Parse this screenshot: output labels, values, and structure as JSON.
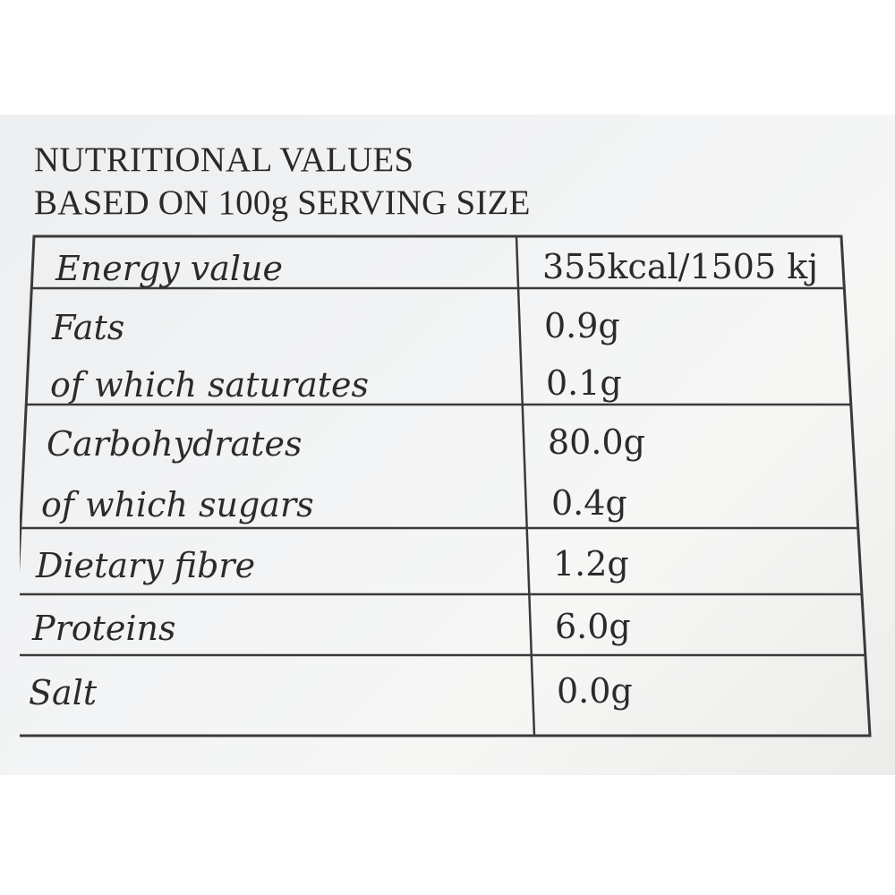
{
  "heading": {
    "line1": "NUTRITIONAL VALUES",
    "line2": "BASED ON 100g SERVING SIZE"
  },
  "rows": [
    {
      "label": "Energy value",
      "value": "355kcal/1505 kj"
    },
    {
      "label": "Fats",
      "value": "0.9g"
    },
    {
      "label": "of which saturates",
      "value": "0.1g"
    },
    {
      "label": "Carbohydrates",
      "value": "80.0g"
    },
    {
      "label": "of which sugars",
      "value": "0.4g"
    },
    {
      "label": "Dietary fibre",
      "value": "1.2g"
    },
    {
      "label": "Proteins",
      "value": "6.0g"
    },
    {
      "label": "Salt",
      "value": "0.0g"
    }
  ],
  "colors": {
    "text": "#2b2b2b",
    "rule": "#3a3a3a",
    "background": "#f2f3f4"
  }
}
